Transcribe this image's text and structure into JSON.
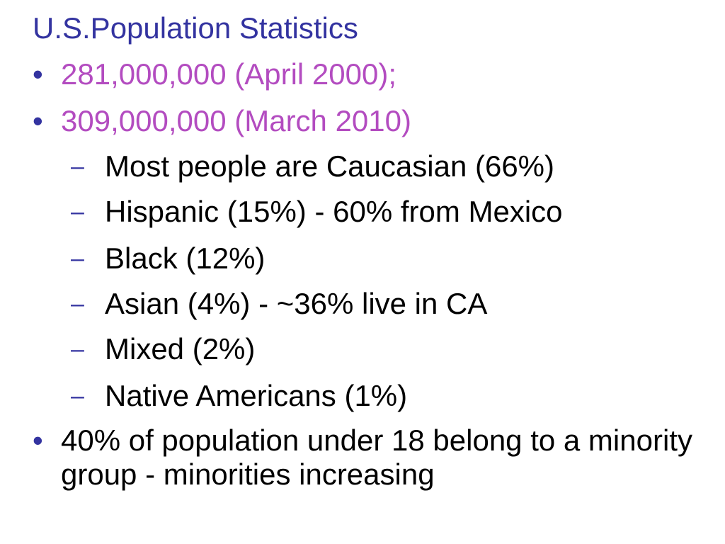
{
  "slide": {
    "title": "U.S.Population Statistics",
    "level1_marker": "•",
    "level2_marker": "–",
    "items": [
      {
        "text": "281,000,000 (April 2000);"
      },
      {
        "text": "309,000,000 (March 2010)"
      },
      {
        "text": "Most people are Caucasian (66%)"
      },
      {
        "text": "Hispanic (15%) - 60% from Mexico"
      },
      {
        "text": "Black (12%)"
      },
      {
        "text": "Asian (4%) - ~36% live in CA"
      },
      {
        "text": "Mixed (2%)"
      },
      {
        "text": "Native Americans (1%)"
      },
      {
        "text": "40% of population under 18 belong to a minority group - minorities increasing"
      }
    ],
    "colors": {
      "title": "#3333a0",
      "highlight": "#b34cc0",
      "body": "#000000"
    }
  }
}
